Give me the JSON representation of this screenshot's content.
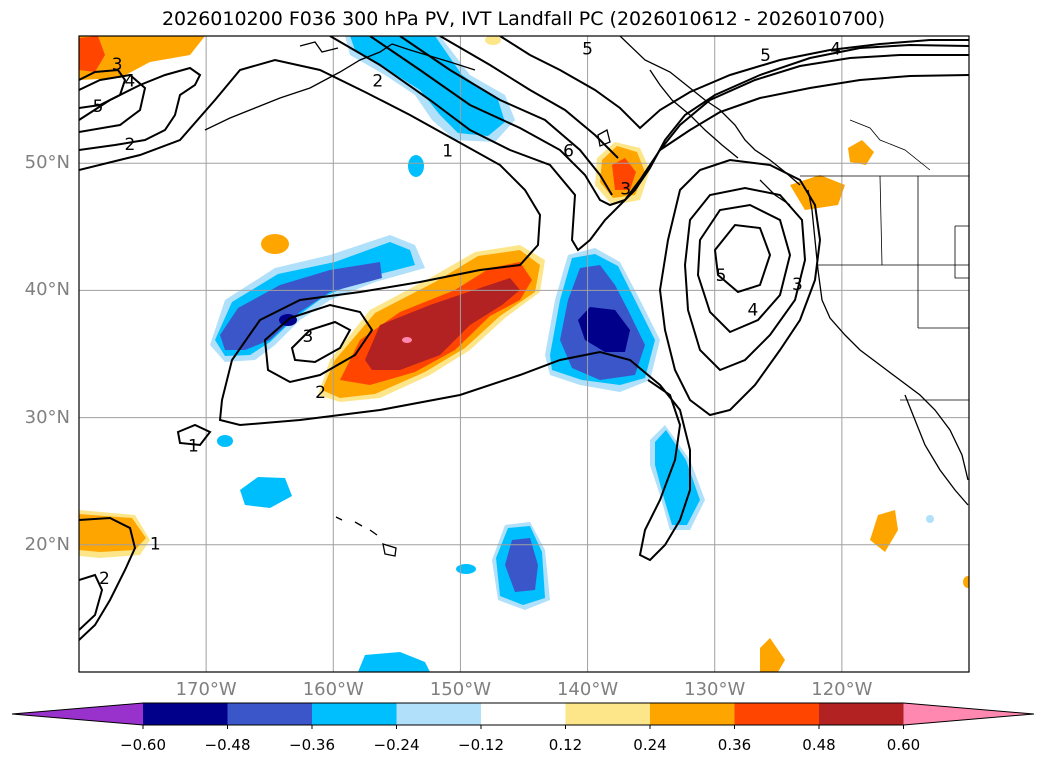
{
  "title": "2026010200 F036 300 hPa PV, IVT Landfall PC (2026010612 - 2026010700)",
  "map": {
    "lon_range": [
      -180,
      -110
    ],
    "lat_range": [
      10,
      60
    ],
    "lat_ticks": [
      {
        "value": 50,
        "label": "50°N"
      },
      {
        "value": 40,
        "label": "40°N"
      },
      {
        "value": 30,
        "label": "30°N"
      },
      {
        "value": 20,
        "label": "20°N"
      }
    ],
    "lon_ticks": [
      {
        "value": -170,
        "label": "170°W"
      },
      {
        "value": -160,
        "label": "160°W"
      },
      {
        "value": -150,
        "label": "150°W"
      },
      {
        "value": -140,
        "label": "140°W"
      },
      {
        "value": -130,
        "label": "130°W"
      },
      {
        "value": -120,
        "label": "120°W"
      }
    ],
    "grid": true,
    "contour_labels": [
      {
        "text": "3",
        "lon": -177,
        "lat": 57.8
      },
      {
        "text": "4",
        "lon": -176,
        "lat": 56.5
      },
      {
        "text": "5",
        "lon": -178.5,
        "lat": 54.5
      },
      {
        "text": "2",
        "lon": -176,
        "lat": 51.5
      },
      {
        "text": "2",
        "lon": -156.5,
        "lat": 56.5
      },
      {
        "text": "1",
        "lon": -151,
        "lat": 51
      },
      {
        "text": "6",
        "lon": -141.5,
        "lat": 51
      },
      {
        "text": "5",
        "lon": -140,
        "lat": 59
      },
      {
        "text": "5",
        "lon": -126,
        "lat": 58.5
      },
      {
        "text": "4",
        "lon": -120.5,
        "lat": 59
      },
      {
        "text": "3",
        "lon": -137,
        "lat": 48
      },
      {
        "text": "5",
        "lon": -129.5,
        "lat": 41.2
      },
      {
        "text": "4",
        "lon": -127,
        "lat": 38.5
      },
      {
        "text": "3",
        "lon": -123.5,
        "lat": 40.5
      },
      {
        "text": "3",
        "lon": -162,
        "lat": 36.4
      },
      {
        "text": "2",
        "lon": -161,
        "lat": 32
      },
      {
        "text": "1",
        "lon": -171,
        "lat": 27.8
      },
      {
        "text": "1",
        "lon": -174,
        "lat": 20.1
      },
      {
        "text": "2",
        "lon": -178,
        "lat": 17.4
      }
    ]
  },
  "colorbar": {
    "levels": [
      -0.6,
      -0.48,
      -0.36,
      -0.24,
      -0.12,
      0.12,
      0.24,
      0.36,
      0.48,
      0.6
    ],
    "labels": [
      "−0.60",
      "−0.48",
      "−0.36",
      "−0.24",
      "−0.12",
      "0.12",
      "0.24",
      "0.36",
      "0.48",
      "0.60"
    ],
    "colors": [
      "#9932cc",
      "#00008b",
      "#3a56c8",
      "#00bfff",
      "#b0e0fa",
      "#ffffff",
      "#fde68a",
      "#ffa500",
      "#ff4500",
      "#b22222",
      "#ff88b0"
    ]
  }
}
